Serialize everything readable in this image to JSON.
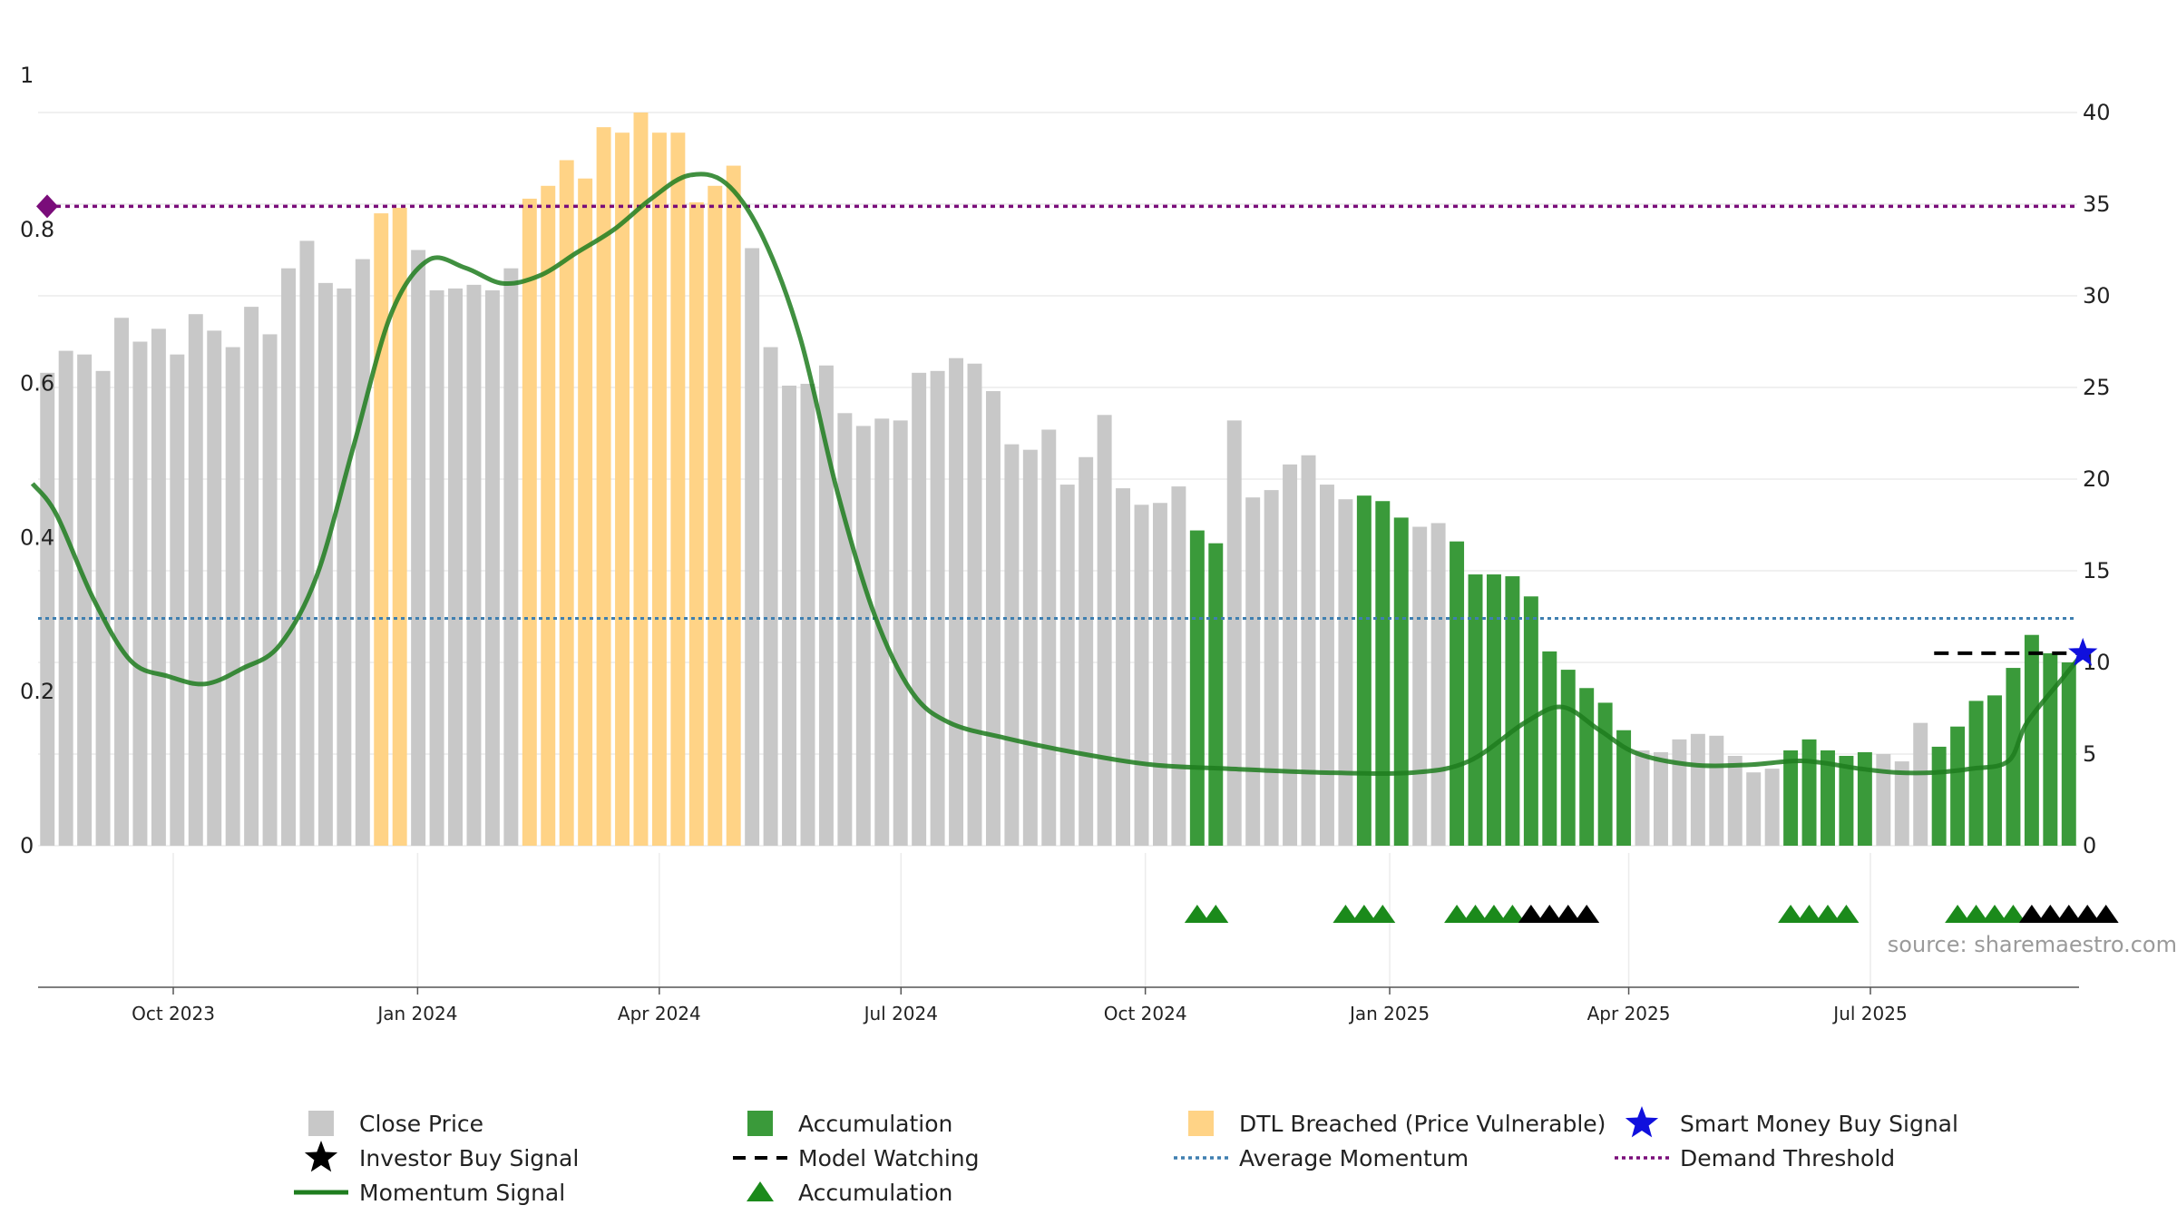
{
  "chart_data": {
    "type": "bar",
    "source_label": "source: sharemaestro.com",
    "x_ticks": [
      "Oct 2023",
      "Jan 2024",
      "Apr 2024",
      "Jul 2024",
      "Oct 2024",
      "Jan 2025",
      "Apr 2025",
      "Jul 2025"
    ],
    "left_axis": {
      "ticks": [
        "0",
        "0.2",
        "0.4",
        "0.6",
        "0.8",
        "1"
      ],
      "ylim": [
        0,
        1
      ]
    },
    "right_axis": {
      "ticks": [
        "0",
        "5",
        "10",
        "15",
        "20",
        "25",
        "30",
        "35",
        "40"
      ],
      "ylim": [
        0,
        40
      ]
    },
    "grid": true,
    "colors": {
      "close": "#c8c8c8",
      "accumulation": "#3a9a3a",
      "dtl": "#ffd386",
      "momentum": "#1f7d1f",
      "average_momentum": "#3f7fb0",
      "demand_threshold": "#7a0d7a",
      "smart_money": "#1010dd",
      "investor_buy": "#000000",
      "model_watching": "#000000",
      "triangle_green": "#1b8a1b"
    },
    "close_price": {
      "values": [
        25.8,
        27.0,
        26.8,
        25.9,
        28.8,
        27.5,
        28.2,
        26.8,
        29.0,
        28.1,
        27.2,
        29.4,
        27.9,
        31.5,
        33.0,
        30.7,
        30.4,
        32.0,
        34.5,
        34.8,
        32.5,
        30.3,
        30.4,
        30.6,
        30.3,
        31.5,
        35.3,
        36.0,
        37.4,
        36.4,
        39.2,
        38.9,
        40.0,
        38.9,
        38.9,
        35.1,
        36.0,
        37.1,
        32.6,
        27.2,
        25.1,
        25.2,
        26.2,
        23.6,
        22.9,
        23.3,
        23.2,
        25.8,
        25.9,
        26.6,
        26.3,
        24.8,
        21.9,
        21.6,
        22.7,
        19.7,
        21.2,
        23.5,
        19.5,
        18.6,
        18.7,
        19.6,
        17.2,
        16.5,
        23.2,
        19.0,
        19.4,
        20.8,
        21.3,
        19.7,
        18.9,
        19.1,
        18.8,
        17.9,
        17.4,
        17.6,
        16.6,
        14.8,
        14.8,
        14.7,
        13.6,
        10.6,
        9.6,
        8.6,
        7.8,
        6.3,
        5.2,
        5.1,
        5.8,
        6.1,
        6.0,
        4.9,
        4.0,
        4.2,
        5.2,
        5.8,
        5.2,
        4.9,
        5.1,
        5.0,
        4.6,
        6.7,
        5.4,
        6.5,
        7.9,
        8.2,
        9.7,
        11.5,
        10.5,
        10.0
      ],
      "accumulation_bars": [
        62,
        63,
        71,
        72,
        73,
        76,
        77,
        78,
        79,
        80,
        81,
        82,
        83,
        84,
        85,
        94,
        95,
        96,
        97,
        98,
        102,
        103,
        104,
        105,
        106,
        107,
        108,
        109,
        110
      ],
      "dtl_breached_bars": [
        18,
        19,
        26,
        27,
        28,
        29,
        30,
        31,
        32,
        33,
        34,
        35,
        36,
        37
      ]
    },
    "momentum_signal": {
      "x": [
        "2023-08-09",
        "2023-08-18",
        "2023-09-01",
        "2023-09-15",
        "2023-09-29",
        "2023-10-13",
        "2023-10-27",
        "2023-11-10",
        "2023-11-24",
        "2023-12-08",
        "2023-12-22",
        "2024-01-05",
        "2024-01-19",
        "2024-02-02",
        "2024-02-16",
        "2024-03-01",
        "2024-03-15",
        "2024-03-29",
        "2024-04-12",
        "2024-04-26",
        "2024-05-10",
        "2024-05-24",
        "2024-06-07",
        "2024-06-21",
        "2024-07-05",
        "2024-07-19",
        "2024-08-09",
        "2024-09-06",
        "2024-10-04",
        "2024-11-01",
        "2024-12-06",
        "2025-01-10",
        "2025-01-31",
        "2025-02-21",
        "2025-03-07",
        "2025-03-21",
        "2025-04-04",
        "2025-04-25",
        "2025-05-16",
        "2025-06-06",
        "2025-06-27",
        "2025-07-11",
        "2025-07-25",
        "2025-08-08",
        "2025-08-22",
        "2025-08-29",
        "2025-09-12",
        "2025-09-19"
      ],
      "values": [
        0.47,
        0.43,
        0.32,
        0.24,
        0.22,
        0.21,
        0.23,
        0.26,
        0.35,
        0.52,
        0.69,
        0.76,
        0.75,
        0.73,
        0.74,
        0.77,
        0.8,
        0.84,
        0.87,
        0.86,
        0.79,
        0.66,
        0.46,
        0.3,
        0.2,
        0.16,
        0.14,
        0.12,
        0.105,
        0.1,
        0.095,
        0.095,
        0.11,
        0.16,
        0.18,
        0.15,
        0.12,
        0.105,
        0.105,
        0.11,
        0.1,
        0.095,
        0.095,
        0.1,
        0.11,
        0.16,
        0.22,
        0.25
      ]
    },
    "average_momentum": 0.295,
    "demand_threshold": 0.83,
    "model_watching": {
      "x": [
        "2025-07-25",
        "2025-09-19"
      ],
      "y": 10.5
    },
    "smart_money_buy_signal": {
      "x": "2025-09-19",
      "y": 10.5
    },
    "accumulation_triangles": [
      62,
      63,
      70,
      71,
      72,
      76,
      77,
      78,
      79,
      94,
      95,
      96,
      97,
      103,
      104,
      105,
      106
    ],
    "investor_buy_triangles": [
      80,
      81,
      82,
      83,
      107,
      108,
      109,
      110,
      111
    ],
    "legend": [
      {
        "label": "Close Price",
        "key": "close"
      },
      {
        "label": "Accumulation",
        "key": "accumulation"
      },
      {
        "label": "DTL Breached (Price Vulnerable)",
        "key": "dtl"
      },
      {
        "label": "Smart Money Buy Signal",
        "key": "smart_money"
      },
      {
        "label": "Investor Buy Signal",
        "key": "investor_buy"
      },
      {
        "label": "Model Watching",
        "key": "model_watching"
      },
      {
        "label": "Average Momentum",
        "key": "average_momentum"
      },
      {
        "label": "Demand Threshold",
        "key": "demand_threshold"
      },
      {
        "label": "Momentum Signal",
        "key": "momentum"
      },
      {
        "label": "Accumulation",
        "key": "triangle_green"
      }
    ]
  }
}
